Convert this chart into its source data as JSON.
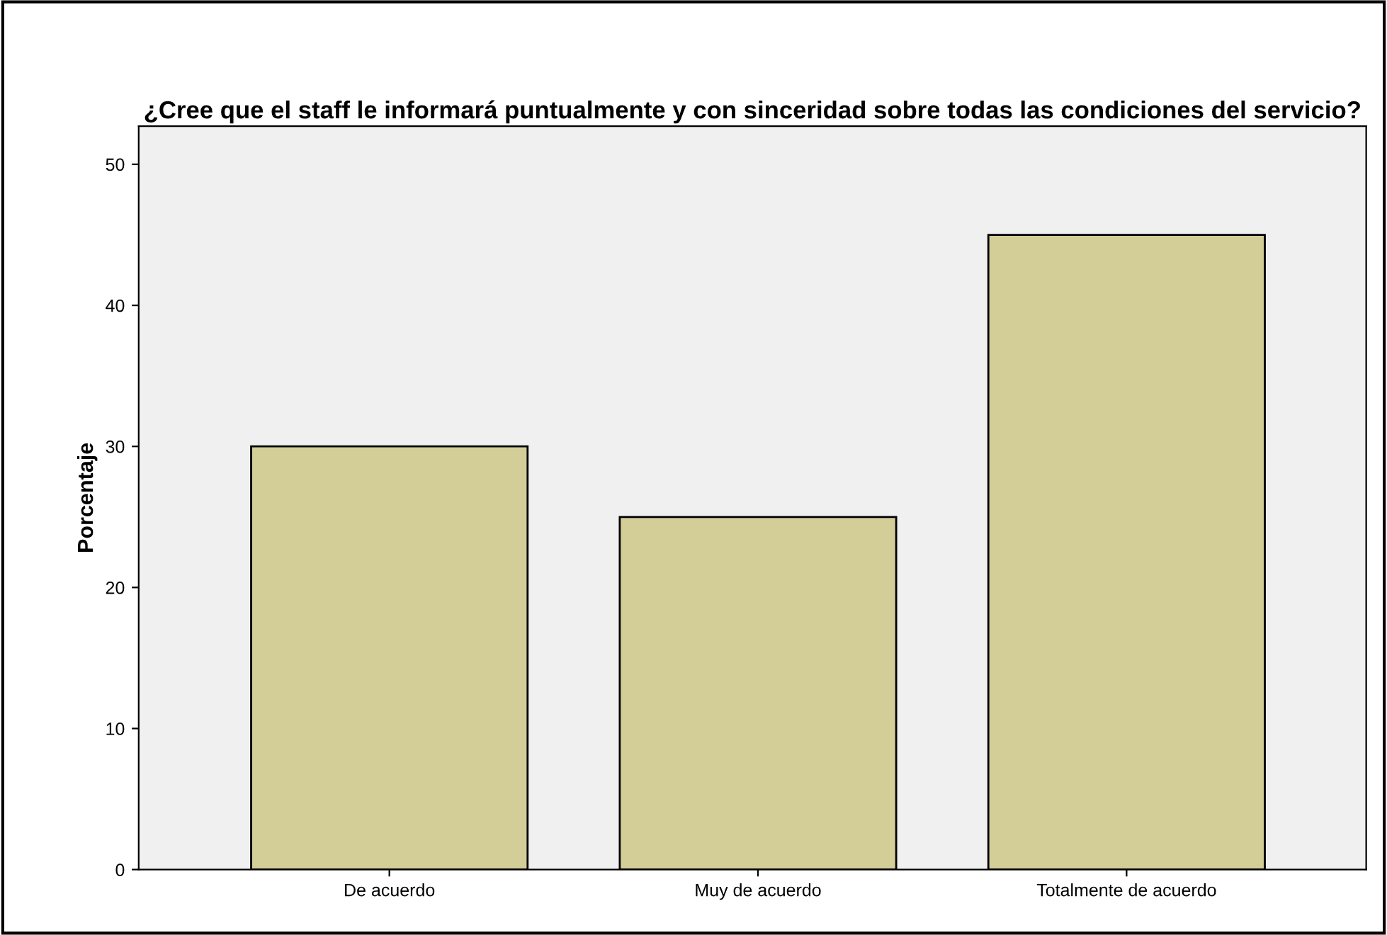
{
  "chart_data": {
    "type": "bar",
    "title": "¿Cree que el staff le informará puntualmente y con sinceridad sobre todas las condiciones del servicio?",
    "ylabel": "Porcentaje",
    "categories": [
      "De acuerdo",
      "Muy de acuerdo",
      "Totalmente de acuerdo"
    ],
    "values": [
      30,
      25,
      45
    ],
    "color": "#d3ce97",
    "ylim": [
      0,
      52.7
    ],
    "yticks": [
      0,
      10,
      20,
      30,
      40,
      50
    ],
    "grid": false
  }
}
